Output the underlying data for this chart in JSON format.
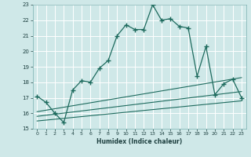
{
  "xlabel": "Humidex (Indice chaleur)",
  "ylabel": "",
  "background_color": "#cfe8e8",
  "grid_color": "#ffffff",
  "line_color": "#1e6b5e",
  "xlim": [
    -0.5,
    23.5
  ],
  "ylim": [
    15,
    23
  ],
  "xticks": [
    0,
    1,
    2,
    3,
    4,
    5,
    6,
    7,
    8,
    9,
    10,
    11,
    12,
    13,
    14,
    15,
    16,
    17,
    18,
    19,
    20,
    21,
    22,
    23
  ],
  "yticks": [
    15,
    16,
    17,
    18,
    19,
    20,
    21,
    22,
    23
  ],
  "main_x": [
    0,
    1,
    2,
    3,
    4,
    5,
    6,
    7,
    8,
    9,
    10,
    11,
    12,
    13,
    14,
    15,
    16,
    17,
    18,
    19,
    20,
    21,
    22,
    23
  ],
  "main_y": [
    17.1,
    16.7,
    16.0,
    15.4,
    17.5,
    18.1,
    18.0,
    18.9,
    19.4,
    21.0,
    21.7,
    21.4,
    21.4,
    23.0,
    22.0,
    22.1,
    21.6,
    21.5,
    18.4,
    20.3,
    17.2,
    17.9,
    18.2,
    17.0
  ],
  "line2_x": [
    0,
    23
  ],
  "line2_y": [
    16.1,
    18.3
  ],
  "line3_x": [
    0,
    23
  ],
  "line3_y": [
    15.8,
    17.4
  ],
  "line4_x": [
    0,
    23
  ],
  "line4_y": [
    15.5,
    16.8
  ]
}
